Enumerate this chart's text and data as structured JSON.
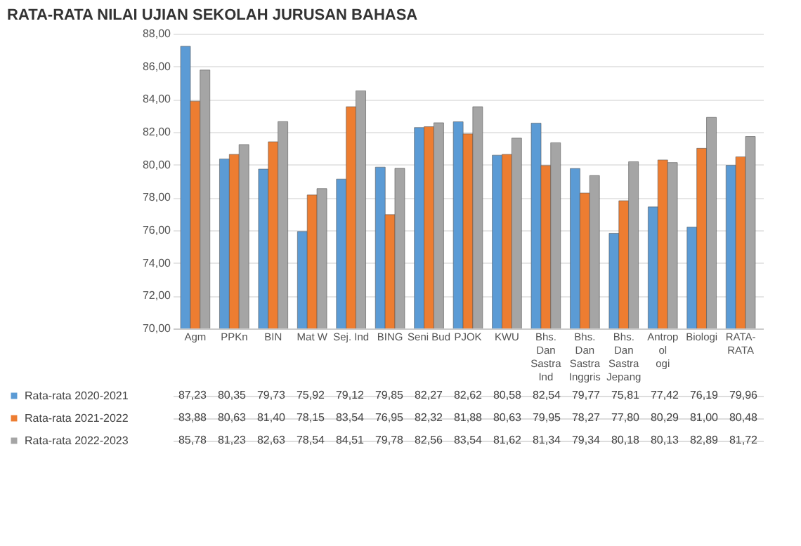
{
  "chart_data": {
    "type": "bar",
    "title": "RATA-RATA NILAI UJIAN  SEKOLAH JURUSAN BAHASA",
    "categories": [
      "Agm",
      "PPKn",
      "BIN",
      "Mat W",
      "Sej. Ind",
      "BING",
      "Seni Bud",
      "PJOK",
      "KWU",
      "Bhs. Dan Sastra Ind",
      "Bhs. Dan Sastra Inggris",
      "Bhs. Dan Sastra Jepang",
      "Antrop ol ogi",
      "Biologi",
      "RATA-RATA"
    ],
    "series": [
      {
        "name": "Rata-rata 2020-2021",
        "color": "#5b9bd5",
        "values": [
          87.23,
          80.35,
          79.73,
          75.92,
          79.12,
          79.85,
          82.27,
          82.62,
          80.58,
          82.54,
          79.77,
          75.81,
          77.42,
          76.19,
          79.96
        ],
        "value_labels": [
          "87,23",
          "80,35",
          "79,73",
          "75,92",
          "79,12",
          "79,85",
          "82,27",
          "82,62",
          "80,58",
          "82,54",
          "79,77",
          "75,81",
          "77,42",
          "76,19",
          "79,96"
        ]
      },
      {
        "name": "Rata-rata 2021-2022",
        "color": "#ed7d31",
        "values": [
          83.88,
          80.63,
          81.4,
          78.15,
          83.54,
          76.95,
          82.32,
          81.88,
          80.63,
          79.95,
          78.27,
          77.8,
          80.29,
          81.0,
          80.48
        ],
        "value_labels": [
          "83,88",
          "80,63",
          "81,40",
          "78,15",
          "83,54",
          "76,95",
          "82,32",
          "81,88",
          "80,63",
          "79,95",
          "78,27",
          "77,80",
          "80,29",
          "81,00",
          "80,48"
        ]
      },
      {
        "name": "Rata-rata 2022-2023",
        "color": "#a5a5a5",
        "values": [
          85.78,
          81.23,
          82.63,
          78.54,
          84.51,
          79.78,
          82.56,
          83.54,
          81.62,
          81.34,
          79.34,
          80.18,
          80.13,
          82.89,
          81.72
        ],
        "value_labels": [
          "85,78",
          "81,23",
          "82,63",
          "78,54",
          "84,51",
          "79,78",
          "82,56",
          "83,54",
          "81,62",
          "81,34",
          "79,34",
          "80,18",
          "80,13",
          "82,89",
          "81,72"
        ]
      }
    ],
    "ylim": [
      70,
      88
    ],
    "yticks": [
      {
        "value": 70,
        "label": "70,00"
      },
      {
        "value": 72,
        "label": "72,00"
      },
      {
        "value": 74,
        "label": "74,00"
      },
      {
        "value": 76,
        "label": "76,00"
      },
      {
        "value": 78,
        "label": "78,00"
      },
      {
        "value": 80,
        "label": "80,00"
      },
      {
        "value": 82,
        "label": "82,00"
      },
      {
        "value": 84,
        "label": "84,00"
      },
      {
        "value": 86,
        "label": "86,00"
      },
      {
        "value": 88,
        "label": "88,00"
      }
    ],
    "grid": "y",
    "legend": "bottom"
  }
}
